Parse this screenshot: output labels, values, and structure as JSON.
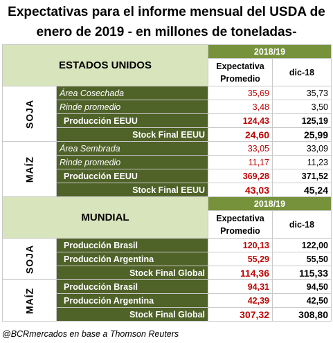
{
  "title_line1": "Expectativas para el informe mensual del USDA de",
  "title_line2": "enero de 2019 - en millones de toneladas-",
  "year_label": "2018/19",
  "col_expect": "Expectativa Promedio",
  "col_dic": "dic-18",
  "us": {
    "title": "ESTADOS UNIDOS",
    "soja": {
      "label": "SOJA",
      "rows": [
        {
          "label": "Área Cosechada",
          "exp": "35,69",
          "dic": "35,73"
        },
        {
          "label": "Rinde promedio",
          "exp": "3,48",
          "dic": "3,50"
        },
        {
          "label": "Producción EEUU",
          "exp": "124,43",
          "dic": "125,19"
        }
      ],
      "stock": {
        "label": "Stock Final EEUU",
        "exp": "24,60",
        "dic": "25,99"
      }
    },
    "maiz": {
      "label": "MAÍZ",
      "rows": [
        {
          "label": "Área Sembrada",
          "exp": "33,05",
          "dic": "33,09"
        },
        {
          "label": "Rinde promedio",
          "exp": "11,17",
          "dic": "11,23"
        },
        {
          "label": "Producción EEUU",
          "exp": "369,28",
          "dic": "371,52"
        }
      ],
      "stock": {
        "label": "Stock Final EEUU",
        "exp": "43,03",
        "dic": "45,24"
      }
    }
  },
  "world": {
    "title": "MUNDIAL",
    "soja": {
      "label": "SOJA",
      "rows": [
        {
          "label": "Producción Brasil",
          "exp": "120,13",
          "dic": "122,00"
        },
        {
          "label": "Producción Argentina",
          "exp": "55,29",
          "dic": "55,50"
        }
      ],
      "stock": {
        "label": "Stock Final Global",
        "exp": "114,36",
        "dic": "115,33"
      }
    },
    "maiz": {
      "label": "MAÍZ",
      "rows": [
        {
          "label": "Producción Brasil",
          "exp": "94,31",
          "dic": "94,50"
        },
        {
          "label": "Producción Argentina",
          "exp": "42,39",
          "dic": "42,50"
        }
      ],
      "stock": {
        "label": "Stock Final Global",
        "exp": "307,32",
        "dic": "308,80"
      }
    }
  },
  "footer": "@BCRmercados en base a Thomson Reuters",
  "colors": {
    "dark_green": "#4f6228",
    "mid_green": "#76933c",
    "light_green": "#d8e4bc",
    "red_value": "#c00000"
  }
}
